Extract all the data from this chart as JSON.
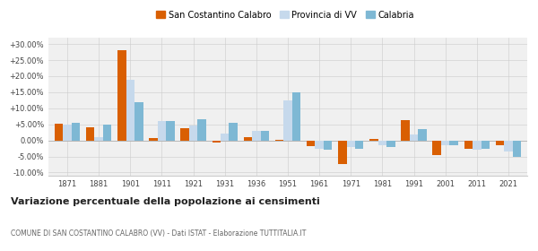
{
  "years": [
    1871,
    1881,
    1901,
    1911,
    1921,
    1931,
    1936,
    1951,
    1961,
    1971,
    1981,
    1991,
    2001,
    2011,
    2021
  ],
  "san_costantino": [
    5.2,
    4.2,
    28.0,
    0.8,
    3.8,
    -0.8,
    1.0,
    0.2,
    -1.8,
    -7.5,
    0.5,
    6.2,
    -4.5,
    -2.5,
    -1.5
  ],
  "provincia_vv": [
    5.0,
    1.0,
    19.0,
    6.0,
    4.5,
    2.0,
    3.0,
    12.5,
    -2.5,
    -2.0,
    -1.5,
    1.8,
    -1.5,
    -2.8,
    -3.5
  ],
  "calabria": [
    5.5,
    5.0,
    12.0,
    6.0,
    6.5,
    5.5,
    3.0,
    15.0,
    -3.0,
    -2.5,
    -2.0,
    3.5,
    -1.5,
    -2.5,
    -5.0
  ],
  "color_san": "#d95f02",
  "color_prov": "#c6d9ec",
  "color_cal": "#7eb8d4",
  "title": "Variazione percentuale della popolazione ai censimenti",
  "subtitle": "COMUNE DI SAN COSTANTINO CALABRO (VV) - Dati ISTAT - Elaborazione TUTTITALIA.IT",
  "ylim": [
    -11,
    32
  ],
  "yticks": [
    -10,
    -5,
    0,
    5,
    10,
    15,
    20,
    25,
    30
  ],
  "legend_labels": [
    "San Costantino Calabro",
    "Provincia di VV",
    "Calabria"
  ],
  "bg_color": "#f0f0f0"
}
